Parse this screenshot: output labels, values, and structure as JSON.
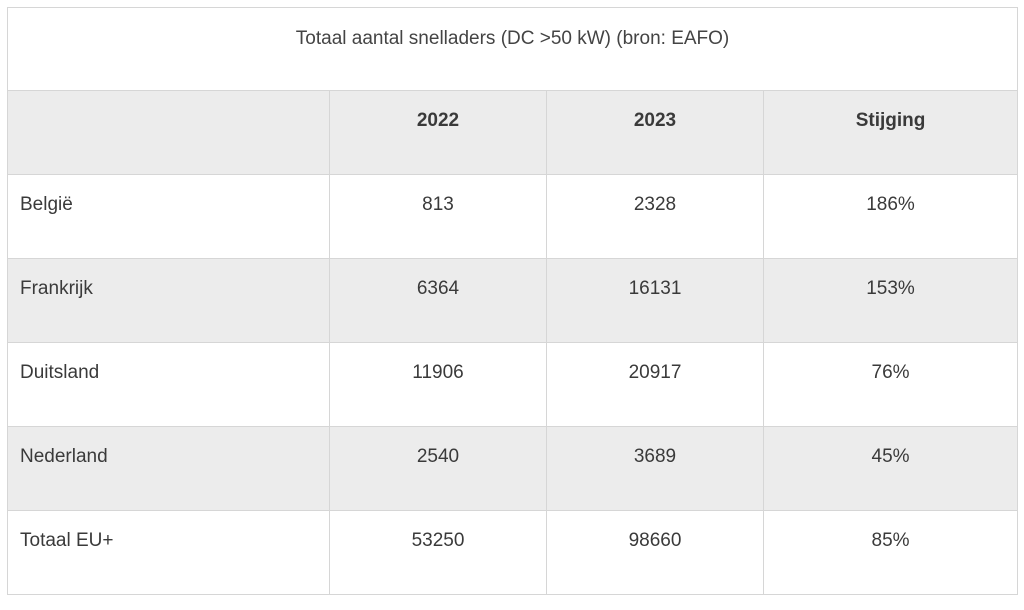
{
  "table": {
    "caption": "Totaal aantal snelladers (DC >50 kW) (bron: EAFO)",
    "columns": [
      "",
      "2022",
      "2023",
      "Stijging"
    ],
    "rows": [
      {
        "country": "België",
        "y2022": "813",
        "y2023": "2328",
        "increase": "186%"
      },
      {
        "country": "Frankrijk",
        "y2022": "6364",
        "y2023": "16131",
        "increase": "153%"
      },
      {
        "country": "Duitsland",
        "y2022": "11906",
        "y2023": "20917",
        "increase": "76%"
      },
      {
        "country": "Nederland",
        "y2022": "2540",
        "y2023": "3689",
        "increase": "45%"
      },
      {
        "country": "Totaal EU+",
        "y2022": "53250",
        "y2023": "98660",
        "increase": "85%"
      }
    ]
  },
  "colors": {
    "border": "#d6d6d6",
    "shaded_row": "#ececec",
    "text": "#3a3a3a"
  }
}
